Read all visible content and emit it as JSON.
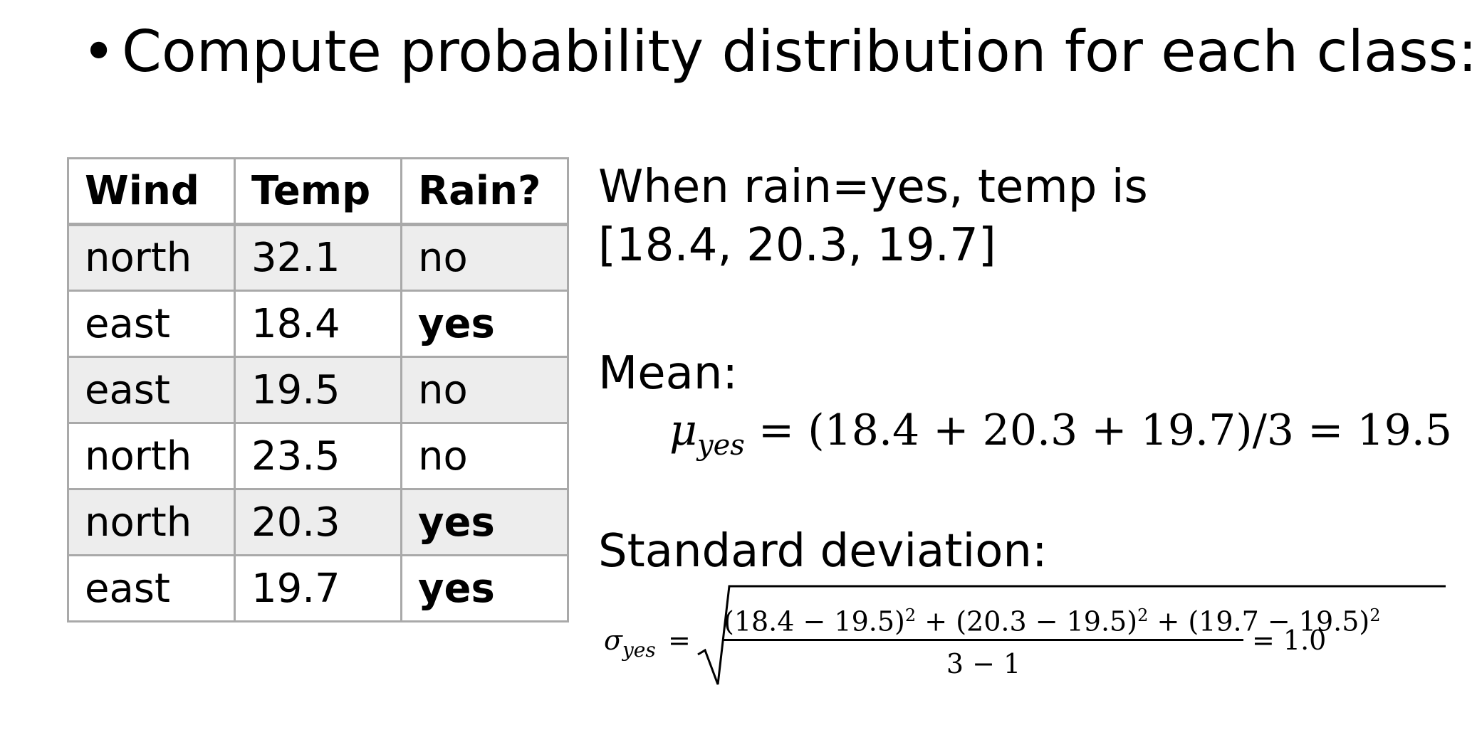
{
  "heading": {
    "bullet": "•",
    "text": "Compute probability distribution for each class:"
  },
  "table": {
    "headers": [
      "Wind",
      "Temp",
      "Rain?"
    ],
    "rows": [
      [
        "north",
        "32.1",
        "no"
      ],
      [
        "east",
        "18.4",
        "yes"
      ],
      [
        "east",
        "19.5",
        "no"
      ],
      [
        "north",
        "23.5",
        "no"
      ],
      [
        "north",
        "20.3",
        "yes"
      ],
      [
        "east",
        "19.7",
        "yes"
      ]
    ]
  },
  "right": {
    "when_line1": "When rain=yes, temp is",
    "when_line2": "[18.4, 20.3, 19.7]",
    "mean_label": "Mean:",
    "mean_eq": {
      "symbol": "μ",
      "subscript": "yes",
      "rhs": "= (18.4 + 20.3 + 19.7)/3 = 19.5"
    },
    "sd_label": "Standard deviation:",
    "sd_eq": {
      "symbol": "σ",
      "subscript": "yes",
      "equals": "=",
      "term1": "(18.4 − 19.5)",
      "term2": "(20.3 − 19.5)",
      "term3": "(19.7 − 19.5)",
      "power": "2",
      "plus": "+",
      "denominator": "3 − 1",
      "result": "= 1.0"
    }
  }
}
